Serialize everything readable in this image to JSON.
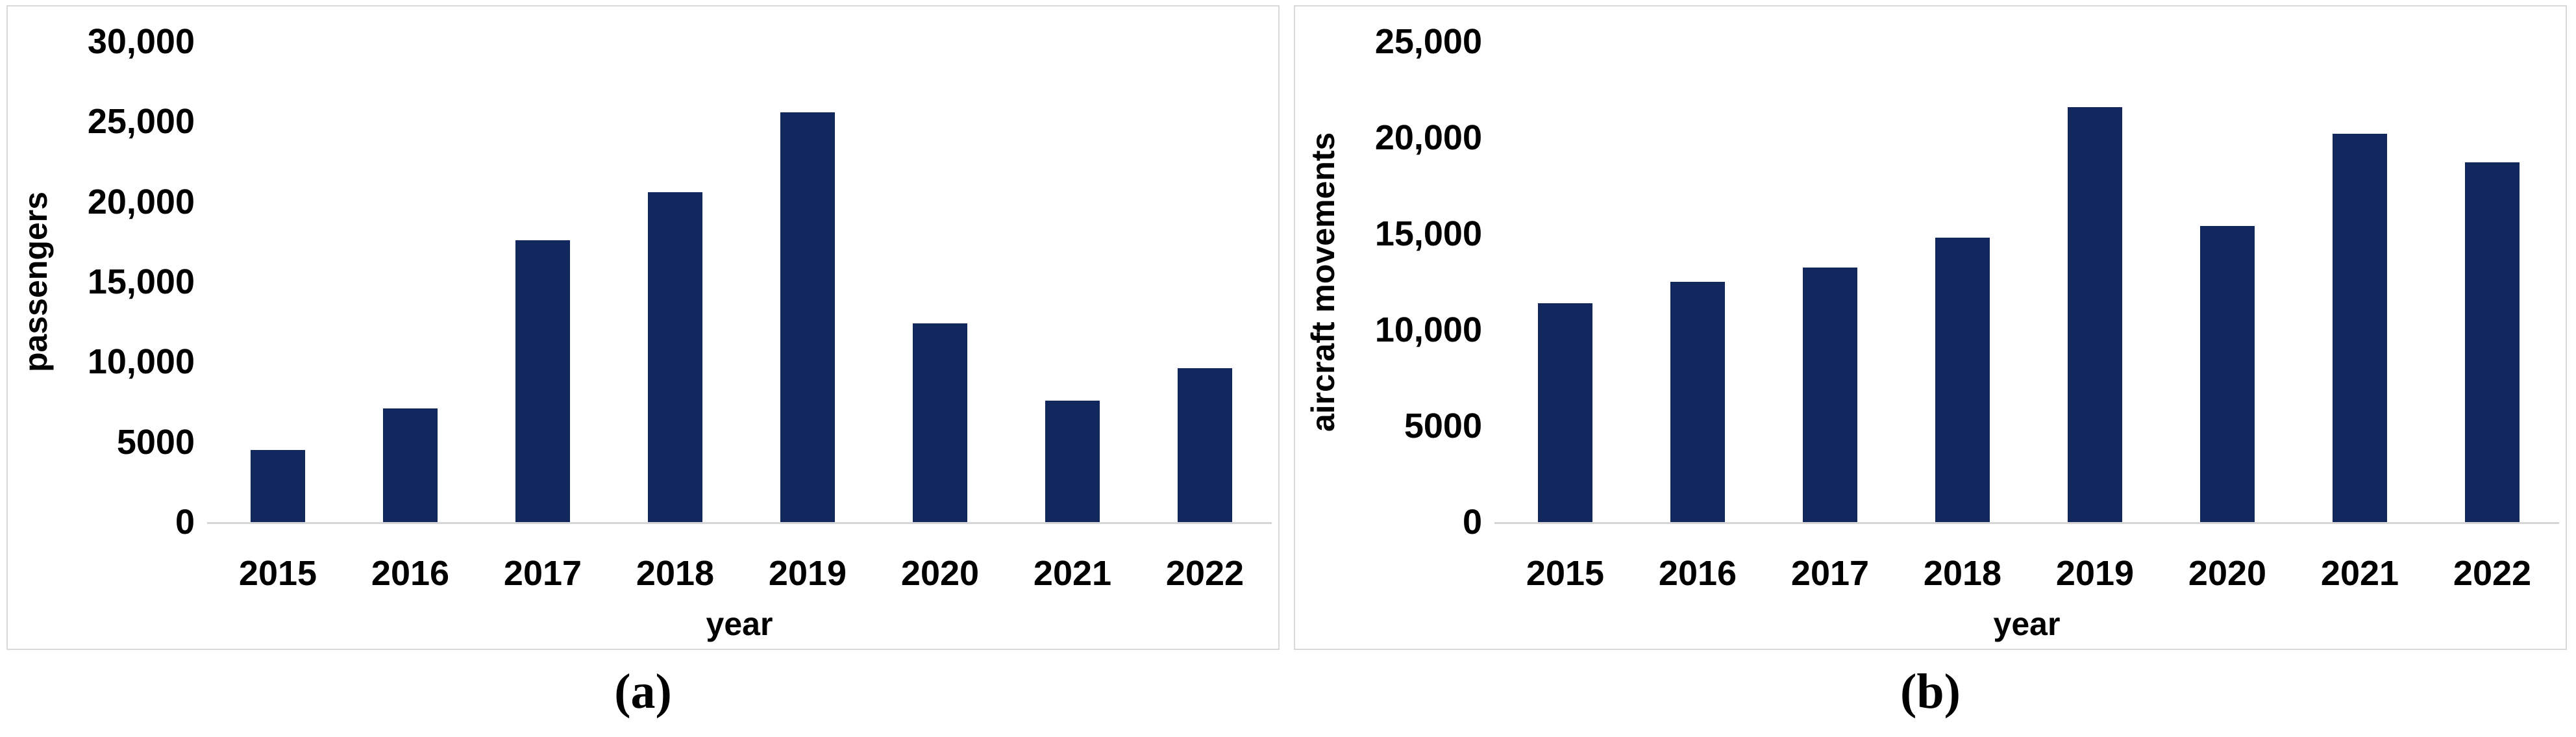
{
  "colors": {
    "bar": "#12275e",
    "axis_line": "#d6d6d6",
    "panel_border": "#d9d9d9",
    "text": "#000000",
    "background": "#ffffff"
  },
  "chart_data": [
    {
      "id": "a",
      "type": "bar",
      "title": "",
      "xlabel": "year",
      "ylabel": "passengers",
      "categories": [
        "2015",
        "2016",
        "2017",
        "2018",
        "2019",
        "2020",
        "2021",
        "2022"
      ],
      "values": [
        4500,
        7100,
        17600,
        20600,
        25600,
        12400,
        7600,
        9600
      ],
      "ylim": [
        0,
        30000
      ],
      "ytick_step": 5000,
      "ytick_labels": [
        "30,000",
        "25,000",
        "20,000",
        "15,000",
        "10,000",
        "5000",
        "0"
      ],
      "grid": false,
      "legend": "none",
      "caption": "(a)"
    },
    {
      "id": "b",
      "type": "bar",
      "title": "",
      "xlabel": "year",
      "ylabel": "aircraft movements",
      "categories": [
        "2015",
        "2016",
        "2017",
        "2018",
        "2019",
        "2020",
        "2021",
        "2022"
      ],
      "values": [
        11400,
        12500,
        13250,
        14800,
        21600,
        15400,
        20200,
        18700
      ],
      "ylim": [
        0,
        25000
      ],
      "ytick_step": 5000,
      "ytick_labels": [
        "25,000",
        "20,000",
        "15,000",
        "10,000",
        "5000",
        "0"
      ],
      "grid": false,
      "legend": "none",
      "caption": "(b)"
    }
  ]
}
